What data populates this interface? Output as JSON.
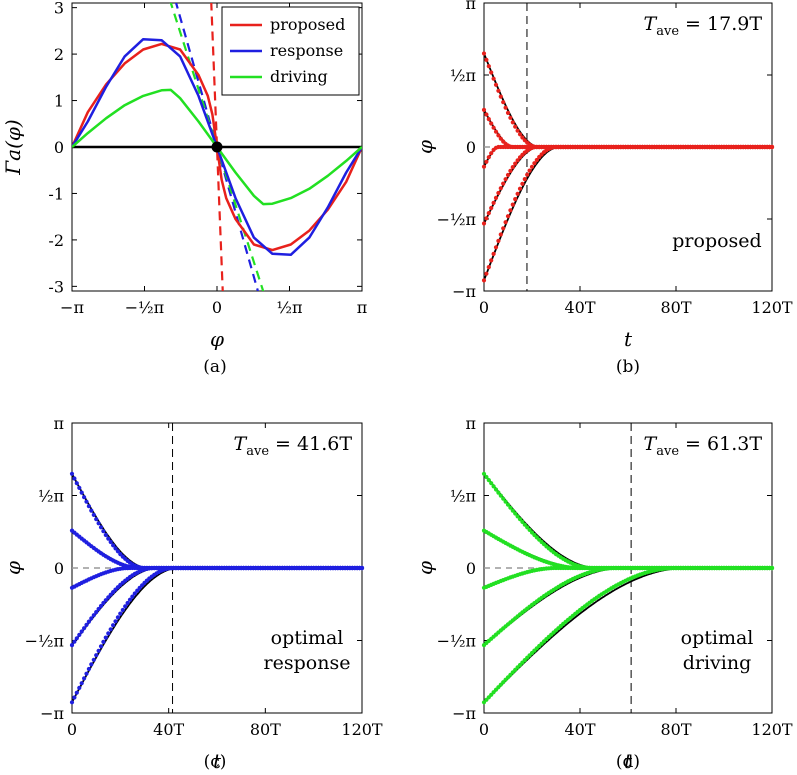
{
  "chart_data": [
    {
      "id": "a",
      "type": "line",
      "caption": "(a)",
      "xlabel": "φ",
      "ylabel": "Γa(φ)",
      "xlim": [
        -3.14159,
        3.14159
      ],
      "ylim": [
        -3.1,
        3.1
      ],
      "xticks": [
        {
          "v": -3.14159,
          "t": "−π"
        },
        {
          "v": -1.5708,
          "t": "−½π"
        },
        {
          "v": 0,
          "t": "0"
        },
        {
          "v": 1.5708,
          "t": "½π"
        },
        {
          "v": 3.14159,
          "t": "π"
        }
      ],
      "yticks": [
        {
          "v": 3,
          "t": "3"
        },
        {
          "v": 2,
          "t": "2"
        },
        {
          "v": 1,
          "t": "1"
        },
        {
          "v": 0,
          "t": "0"
        },
        {
          "v": -1,
          "t": "-1"
        },
        {
          "v": -2,
          "t": "-2"
        },
        {
          "v": -3,
          "t": "-3"
        }
      ],
      "legend": [
        {
          "name": "proposed",
          "color": "#e8211c"
        },
        {
          "name": "response",
          "color": "#1f1fe0"
        },
        {
          "name": "driving",
          "color": "#22e022"
        }
      ],
      "series": [
        {
          "name": "proposed",
          "color": "#e8211c",
          "x": [
            -3.1416,
            -2.8,
            -2.4,
            -2.0,
            -1.6,
            -1.2,
            -0.8,
            -0.4,
            -0.2,
            -0.1,
            -0.05,
            0,
            0.05,
            0.1,
            0.2,
            0.4,
            0.8,
            1.2,
            1.6,
            2.0,
            2.4,
            2.8,
            3.1416
          ],
          "y": [
            0,
            0.75,
            1.35,
            1.8,
            2.1,
            2.22,
            2.1,
            1.55,
            1.1,
            0.7,
            0.35,
            0,
            -0.35,
            -0.7,
            -1.1,
            -1.55,
            -2.1,
            -2.22,
            -2.1,
            -1.8,
            -1.35,
            -0.75,
            0
          ]
        },
        {
          "name": "response",
          "color": "#1f1fe0",
          "x": [
            -3.1416,
            -2.8,
            -2.4,
            -2.0,
            -1.6,
            -1.2,
            -0.8,
            -0.4,
            0,
            0.4,
            0.8,
            1.2,
            1.6,
            2.0,
            2.4,
            2.8,
            3.1416
          ],
          "y": [
            0,
            0.55,
            1.3,
            1.95,
            2.32,
            2.3,
            1.95,
            1.1,
            0,
            -1.1,
            -1.95,
            -2.3,
            -2.32,
            -1.95,
            -1.3,
            -0.55,
            0
          ]
        },
        {
          "name": "driving",
          "color": "#22e022",
          "x": [
            -3.1416,
            -2.8,
            -2.4,
            -2.0,
            -1.6,
            -1.2,
            -1.0,
            -0.8,
            -0.4,
            0,
            0.4,
            0.8,
            1.0,
            1.2,
            1.6,
            2.0,
            2.4,
            2.8,
            3.1416
          ],
          "y": [
            0,
            0.3,
            0.62,
            0.9,
            1.1,
            1.22,
            1.23,
            1.05,
            0.55,
            0,
            -0.55,
            -1.05,
            -1.23,
            -1.22,
            -1.1,
            -0.9,
            -0.62,
            -0.3,
            0
          ]
        }
      ],
      "tangents": [
        {
          "name": "proposed-slope",
          "color": "#e8211c",
          "slope": -25
        },
        {
          "name": "response-slope",
          "color": "#1f1fe0",
          "slope": -3.5
        },
        {
          "name": "driving-slope",
          "color": "#22e022",
          "slope": -3.1
        }
      ],
      "baseline": {
        "y": 0,
        "color": "#000000"
      },
      "point": {
        "x": 0,
        "y": 0
      }
    },
    {
      "id": "b",
      "type": "scatter",
      "caption": "(b)",
      "xlabel": "t",
      "ylabel": "φ",
      "annotation": "T_ave = 17.9T",
      "annotation_main": "T",
      "annotation_sub": "ave",
      "annotation_rest": " = 17.9T",
      "tave": 17.9,
      "label": [
        "proposed"
      ],
      "color": "#e8211c",
      "xlim": [
        0,
        120
      ],
      "ylim": [
        -3.14159,
        3.14159
      ],
      "xticks": [
        {
          "v": 0,
          "t": "0"
        },
        {
          "v": 40,
          "t": "40T"
        },
        {
          "v": 80,
          "t": "80T"
        },
        {
          "v": 120,
          "t": "120T"
        }
      ],
      "yticks": [
        {
          "v": 3.14159,
          "t": "π"
        },
        {
          "v": 1.5708,
          "t": "½π"
        },
        {
          "v": 0,
          "t": "0"
        },
        {
          "v": -1.5708,
          "t": "−½π"
        },
        {
          "v": -3.14159,
          "t": "−π"
        }
      ],
      "initial_values": [
        2.04,
        0.81,
        -0.43,
        -1.67,
        -2.91
      ],
      "decay_time": [
        22,
        12,
        6,
        22,
        30
      ]
    },
    {
      "id": "c",
      "type": "scatter",
      "caption": "(c)",
      "xlabel": "t",
      "ylabel": "φ",
      "annotation": "T_ave = 41.6T",
      "annotation_main": "T",
      "annotation_sub": "ave",
      "annotation_rest": " = 41.6T",
      "tave": 41.6,
      "label": [
        "optimal",
        "response"
      ],
      "color": "#1f1fe0",
      "xlim": [
        0,
        120
      ],
      "ylim": [
        -3.14159,
        3.14159
      ],
      "xticks": [
        {
          "v": 0,
          "t": "0"
        },
        {
          "v": 40,
          "t": "40T"
        },
        {
          "v": 80,
          "t": "80T"
        },
        {
          "v": 120,
          "t": "120T"
        }
      ],
      "yticks": [
        {
          "v": 3.14159,
          "t": "π"
        },
        {
          "v": 1.5708,
          "t": "½π"
        },
        {
          "v": 0,
          "t": "0"
        },
        {
          "v": -1.5708,
          "t": "−½π"
        },
        {
          "v": -3.14159,
          "t": "−π"
        }
      ],
      "initial_values": [
        2.04,
        0.81,
        -0.43,
        -1.67,
        -2.91
      ],
      "decay_time": [
        30,
        28,
        24,
        34,
        42
      ]
    },
    {
      "id": "d",
      "type": "scatter",
      "caption": "(d)",
      "xlabel": "t",
      "ylabel": "φ",
      "annotation": "T_ave = 61.3T",
      "annotation_main": "T",
      "annotation_sub": "ave",
      "annotation_rest": " = 61.3T",
      "tave": 61.3,
      "label": [
        "optimal",
        "driving"
      ],
      "color": "#22e022",
      "xlim": [
        0,
        120
      ],
      "ylim": [
        -3.14159,
        3.14159
      ],
      "xticks": [
        {
          "v": 0,
          "t": "0"
        },
        {
          "v": 40,
          "t": "40T"
        },
        {
          "v": 80,
          "t": "80T"
        },
        {
          "v": 120,
          "t": "120T"
        }
      ],
      "yticks": [
        {
          "v": 3.14159,
          "t": "π"
        },
        {
          "v": 1.5708,
          "t": "½π"
        },
        {
          "v": 0,
          "t": "0"
        },
        {
          "v": -1.5708,
          "t": "−½π"
        },
        {
          "v": -3.14159,
          "t": "−π"
        }
      ],
      "initial_values": [
        2.04,
        0.81,
        -0.43,
        -1.67,
        -2.91
      ],
      "decay_time": [
        45,
        40,
        30,
        55,
        80
      ]
    }
  ]
}
